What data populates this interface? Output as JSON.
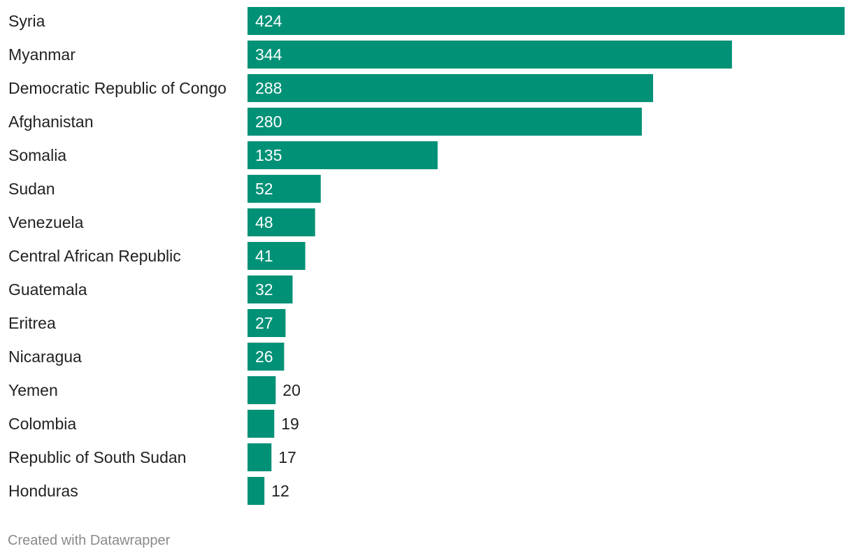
{
  "chart_data": {
    "type": "bar",
    "orientation": "horizontal",
    "categories": [
      "Syria",
      "Myanmar",
      "Democratic Republic of Congo",
      "Afghanistan",
      "Somalia",
      "Sudan",
      "Venezuela",
      "Central African Republic",
      "Guatemala",
      "Eritrea",
      "Nicaragua",
      "Yemen",
      "Colombia",
      "Republic of South Sudan",
      "Honduras"
    ],
    "values": [
      424,
      344,
      288,
      280,
      135,
      52,
      48,
      41,
      32,
      27,
      26,
      20,
      19,
      17,
      12
    ],
    "xlim": [
      0,
      424
    ],
    "title": "",
    "xlabel": "",
    "ylabel": "",
    "grid": false,
    "bar_color": "#009177",
    "label_inside_color": "#ffffff",
    "label_outside_color": "#222222"
  },
  "footer": {
    "credit": "Created with Datawrapper"
  }
}
